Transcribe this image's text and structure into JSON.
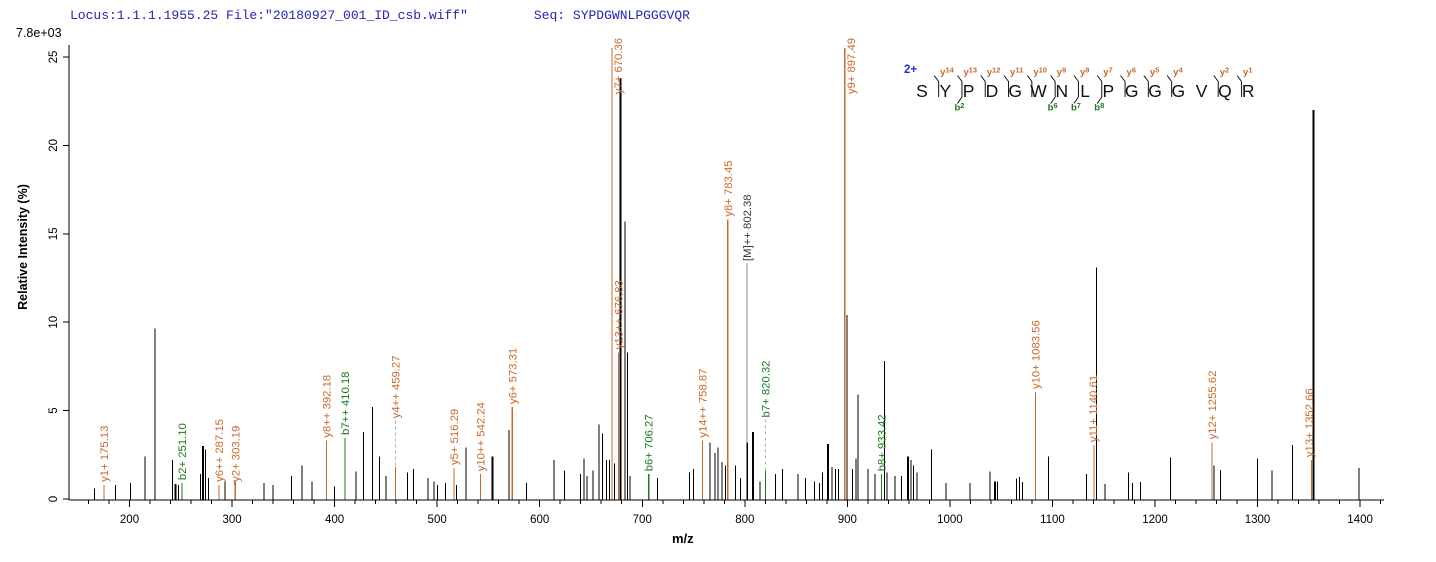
{
  "header": {
    "locus_file": "Locus:1.1.1.1955.25 File:\"20180927_001_ID_csb.wiff\"",
    "seq_label": "Seq:",
    "sequence": "SYPDGWNLPGGGVQR"
  },
  "axis": {
    "ylabel": "Relative  Intensity (%)",
    "xlabel": "m/z",
    "y_abs_max": "7.8e+03",
    "yticks": [
      0,
      5,
      10,
      15,
      20,
      25
    ],
    "xticks": [
      200,
      300,
      400,
      500,
      600,
      700,
      800,
      900,
      1000,
      1100,
      1200,
      1300,
      1400
    ],
    "minor_tick_step": 20,
    "xlim": [
      141,
      1422
    ],
    "ylim": [
      0,
      25.6
    ]
  },
  "colors": {
    "y_ion": "#c96a2a",
    "b_ion": "#1b7a1b",
    "precursor_label": "#3a3a3a",
    "leader_solid": "#8a8a8a",
    "leader_dashed": "#b0b0b0",
    "header_blue": "#2323bb",
    "charge_blue": "#2233cc",
    "peak_black": "#000000"
  },
  "chart_data": {
    "type": "bar",
    "xlabel": "m/z",
    "ylabel": "Relative  Intensity (%)",
    "labeled_peaks": [
      {
        "label": "y1+ 175.13",
        "mz": 175.13,
        "pct": 0.8,
        "ion": "y"
      },
      {
        "label": "b2+ 251.10",
        "mz": 251.1,
        "pct": 0.9,
        "ion": "b"
      },
      {
        "label": "y6++ 287.15",
        "mz": 287.15,
        "pct": 0.8,
        "ion": "y"
      },
      {
        "label": "y2+ 303.19",
        "mz": 303.19,
        "pct": 0.8,
        "ion": "y"
      },
      {
        "label": "y8++ 392.18",
        "mz": 392.18,
        "pct": 3.3,
        "ion": "y"
      },
      {
        "label": "b7++ 410.18",
        "mz": 410.18,
        "pct": 3.45,
        "ion": "b"
      },
      {
        "label": "y4++ 459.27",
        "mz": 459.27,
        "pct": 1.8,
        "ion": "y",
        "leader": {
          "style": "dashed",
          "top": 4.45
        }
      },
      {
        "label": "y5+ 516.29",
        "mz": 516.29,
        "pct": 1.75,
        "ion": "y"
      },
      {
        "label": "y10++ 542.24",
        "mz": 542.24,
        "pct": 1.4,
        "ion": "y"
      },
      {
        "label": "y6+ 573.31",
        "mz": 573.31,
        "pct": 5.2,
        "ion": "y"
      },
      {
        "label": "y7+ 670.36",
        "mz": 670.36,
        "pct": 25.5,
        "ion": "y",
        "side": true
      },
      {
        "label": "y13++ 676.83",
        "mz": 676.83,
        "pct": 8.3,
        "ion": "y"
      },
      {
        "label": "b6+ 706.27",
        "mz": 706.27,
        "pct": 1.4,
        "ion": "b"
      },
      {
        "label": "y14++ 758.87",
        "mz": 758.87,
        "pct": 3.3,
        "ion": "y"
      },
      {
        "label": "y8+ 783.45",
        "mz": 783.45,
        "pct": 15.8,
        "ion": "y"
      },
      {
        "label": "[M]++ 802.38",
        "mz": 802.38,
        "pct": 3.2,
        "ion": "m",
        "leader": {
          "style": "solid",
          "top": 13.35
        }
      },
      {
        "label": "b7+ 820.32",
        "mz": 820.32,
        "pct": 1.6,
        "ion": "b",
        "leader": {
          "style": "dashed",
          "top": 4.5
        }
      },
      {
        "label": "y9+ 897.49",
        "mz": 897.49,
        "pct": 25.5,
        "ion": "y",
        "side": true
      },
      {
        "label": "b8+ 933.42",
        "mz": 933.42,
        "pct": 1.4,
        "ion": "b"
      },
      {
        "label": "y10+ 1083.56",
        "mz": 1083.56,
        "pct": 6.05,
        "ion": "y"
      },
      {
        "label": "y11+ 1140.61",
        "mz": 1140.61,
        "pct": 3.05,
        "ion": "y",
        "tx_off": -1
      },
      {
        "label": "y12+ 1255.62",
        "mz": 1255.62,
        "pct": 3.2,
        "ion": "y"
      },
      {
        "label": "y13+ 1352.66",
        "mz": 1352.66,
        "pct": 2.2,
        "ion": "y",
        "tx_off": -2.5
      }
    ],
    "peaks": [
      [
        166,
        0.6
      ],
      [
        186.5,
        0.8
      ],
      [
        201,
        0.9
      ],
      [
        215,
        2.4
      ],
      [
        225,
        9.65
      ],
      [
        242,
        2.2
      ],
      [
        245,
        0.85,
        2
      ],
      [
        248,
        0.8
      ],
      [
        269,
        1.4
      ],
      [
        271.5,
        3.0,
        2
      ],
      [
        274,
        2.8
      ],
      [
        277,
        1.2
      ],
      [
        293,
        1.0
      ],
      [
        303,
        1.0
      ],
      [
        331,
        0.9
      ],
      [
        340,
        0.8
      ],
      [
        358,
        1.3
      ],
      [
        368,
        1.9
      ],
      [
        378,
        1.0
      ],
      [
        400,
        0.7
      ],
      [
        421,
        1.55
      ],
      [
        428,
        3.8
      ],
      [
        437,
        5.2
      ],
      [
        444,
        2.4
      ],
      [
        450,
        1.3
      ],
      [
        471,
        1.5
      ],
      [
        477,
        1.7
      ],
      [
        491,
        1.2
      ],
      [
        497,
        1.0
      ],
      [
        500.5,
        0.8
      ],
      [
        508,
        0.9
      ],
      [
        519,
        0.8
      ],
      [
        528,
        2.9
      ],
      [
        554,
        2.4,
        2
      ],
      [
        570,
        3.9
      ],
      [
        587,
        0.9
      ],
      [
        614,
        2.2
      ],
      [
        624,
        1.6
      ],
      [
        640,
        1.4
      ],
      [
        643,
        2.3
      ],
      [
        646,
        1.3
      ],
      [
        652,
        1.6
      ],
      [
        658,
        4.2
      ],
      [
        661,
        3.7
      ],
      [
        665,
        2.2
      ],
      [
        668,
        2.2
      ],
      [
        673,
        2.0
      ],
      [
        679,
        23.8,
        2
      ],
      [
        683,
        15.7
      ],
      [
        685.5,
        8.3
      ],
      [
        688,
        1.3
      ],
      [
        715,
        1.2
      ],
      [
        746,
        1.5
      ],
      [
        750,
        1.7
      ],
      [
        766,
        3.2
      ],
      [
        771,
        2.6
      ],
      [
        774,
        2.9
      ],
      [
        778,
        2.1
      ],
      [
        781,
        1.9
      ],
      [
        791,
        1.9
      ],
      [
        796,
        1.2
      ],
      [
        808,
        3.8,
        2
      ],
      [
        815,
        1.0
      ],
      [
        830,
        1.4
      ],
      [
        837,
        1.7
      ],
      [
        852,
        1.4
      ],
      [
        859,
        1.2
      ],
      [
        868,
        1.0
      ],
      [
        873,
        0.9
      ],
      [
        876,
        1.5
      ],
      [
        881,
        3.1,
        2
      ],
      [
        885,
        1.8
      ],
      [
        888.5,
        1.7
      ],
      [
        891.5,
        1.7
      ],
      [
        899.5,
        10.4
      ],
      [
        905,
        1.7
      ],
      [
        908.5,
        2.3
      ],
      [
        910.5,
        5.9
      ],
      [
        920,
        1.7
      ],
      [
        927,
        1.4
      ],
      [
        936,
        7.8
      ],
      [
        938.5,
        1.5
      ],
      [
        946.5,
        1.3
      ],
      [
        953,
        1.3
      ],
      [
        959,
        2.4,
        2
      ],
      [
        962,
        2.2
      ],
      [
        964.5,
        1.9
      ],
      [
        968,
        1.5
      ],
      [
        982,
        2.8
      ],
      [
        996,
        0.9
      ],
      [
        1019.6,
        0.9
      ],
      [
        1039,
        1.55
      ],
      [
        1044,
        1.0,
        2
      ],
      [
        1046.5,
        1.0
      ],
      [
        1065,
        1.15
      ],
      [
        1068,
        1.25
      ],
      [
        1071,
        0.95
      ],
      [
        1096,
        2.4
      ],
      [
        1133,
        1.4
      ],
      [
        1143,
        13.1
      ],
      [
        1151,
        0.85
      ],
      [
        1174,
        1.5
      ],
      [
        1178,
        0.9
      ],
      [
        1186,
        0.95
      ],
      [
        1215,
        2.35
      ],
      [
        1257.5,
        1.9
      ],
      [
        1264,
        1.65
      ],
      [
        1300,
        2.3
      ],
      [
        1314,
        1.6
      ],
      [
        1334,
        3.05
      ],
      [
        1354.5,
        22.0,
        2
      ],
      [
        1399,
        1.75
      ]
    ]
  },
  "peptide": {
    "charge": "2+",
    "residues": [
      "S",
      "Y",
      "P",
      "D",
      "G",
      "W",
      "N",
      "L",
      "P",
      "G",
      "G",
      "G",
      "V",
      "Q",
      "R"
    ],
    "gaps": [
      {
        "y": "y14",
        "b": null
      },
      {
        "y": "y13",
        "b": "b2"
      },
      {
        "y": "y12",
        "b": null
      },
      {
        "y": "y11",
        "b": null
      },
      {
        "y": "y10",
        "b": null
      },
      {
        "y": "y9",
        "b": "b6"
      },
      {
        "y": "y8",
        "b": "b7"
      },
      {
        "y": "y7",
        "b": "b8"
      },
      {
        "y": "y6",
        "b": null
      },
      {
        "y": "y5",
        "b": null
      },
      {
        "y": "y4",
        "b": null
      },
      {
        "y": null,
        "b": null
      },
      {
        "y": "y2",
        "b": null
      },
      {
        "y": "y1",
        "b": null
      }
    ]
  }
}
